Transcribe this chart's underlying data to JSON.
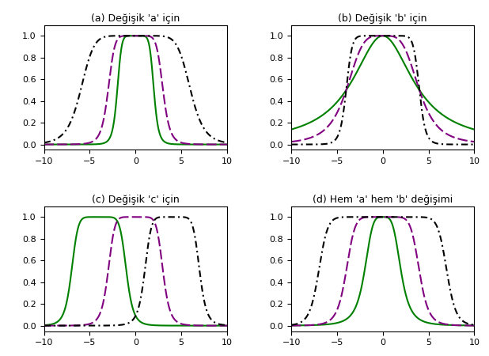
{
  "title_a": "(a) Değişik 'a' için",
  "title_b": "(b) Değişik 'b' için",
  "title_c": "(c) Değişik 'c' için",
  "title_d": "(d) Hem 'a' hem 'b' değişimi",
  "xlim": [
    -10,
    10
  ],
  "ylim": [
    -0.05,
    1.1
  ],
  "xticks": [
    -10,
    -5,
    0,
    5,
    10
  ],
  "yticks": [
    0,
    0.2,
    0.4,
    0.6,
    0.8,
    1
  ],
  "params_a": [
    {
      "a": 2,
      "b": 4,
      "c": 0
    },
    {
      "a": 3,
      "b": 4,
      "c": 0
    },
    {
      "a": 6,
      "b": 4,
      "c": 0
    }
  ],
  "params_b": [
    {
      "a": 4,
      "b": 1,
      "c": 0
    },
    {
      "a": 4,
      "b": 2,
      "c": 0
    },
    {
      "a": 4,
      "b": 6,
      "c": 0
    }
  ],
  "params_c": [
    {
      "a": 3,
      "b": 4,
      "c": -4
    },
    {
      "a": 3,
      "b": 4,
      "c": 0
    },
    {
      "a": 3,
      "b": 4,
      "c": 4
    }
  ],
  "params_d": [
    {
      "a": 2,
      "b": 2,
      "c": 0
    },
    {
      "a": 4,
      "b": 4,
      "c": 0
    },
    {
      "a": 7,
      "b": 7,
      "c": 0
    }
  ],
  "line_colors": [
    "green",
    "purple",
    "black"
  ],
  "line_styles": [
    "-",
    "--",
    "-."
  ],
  "linewidth": 1.5
}
